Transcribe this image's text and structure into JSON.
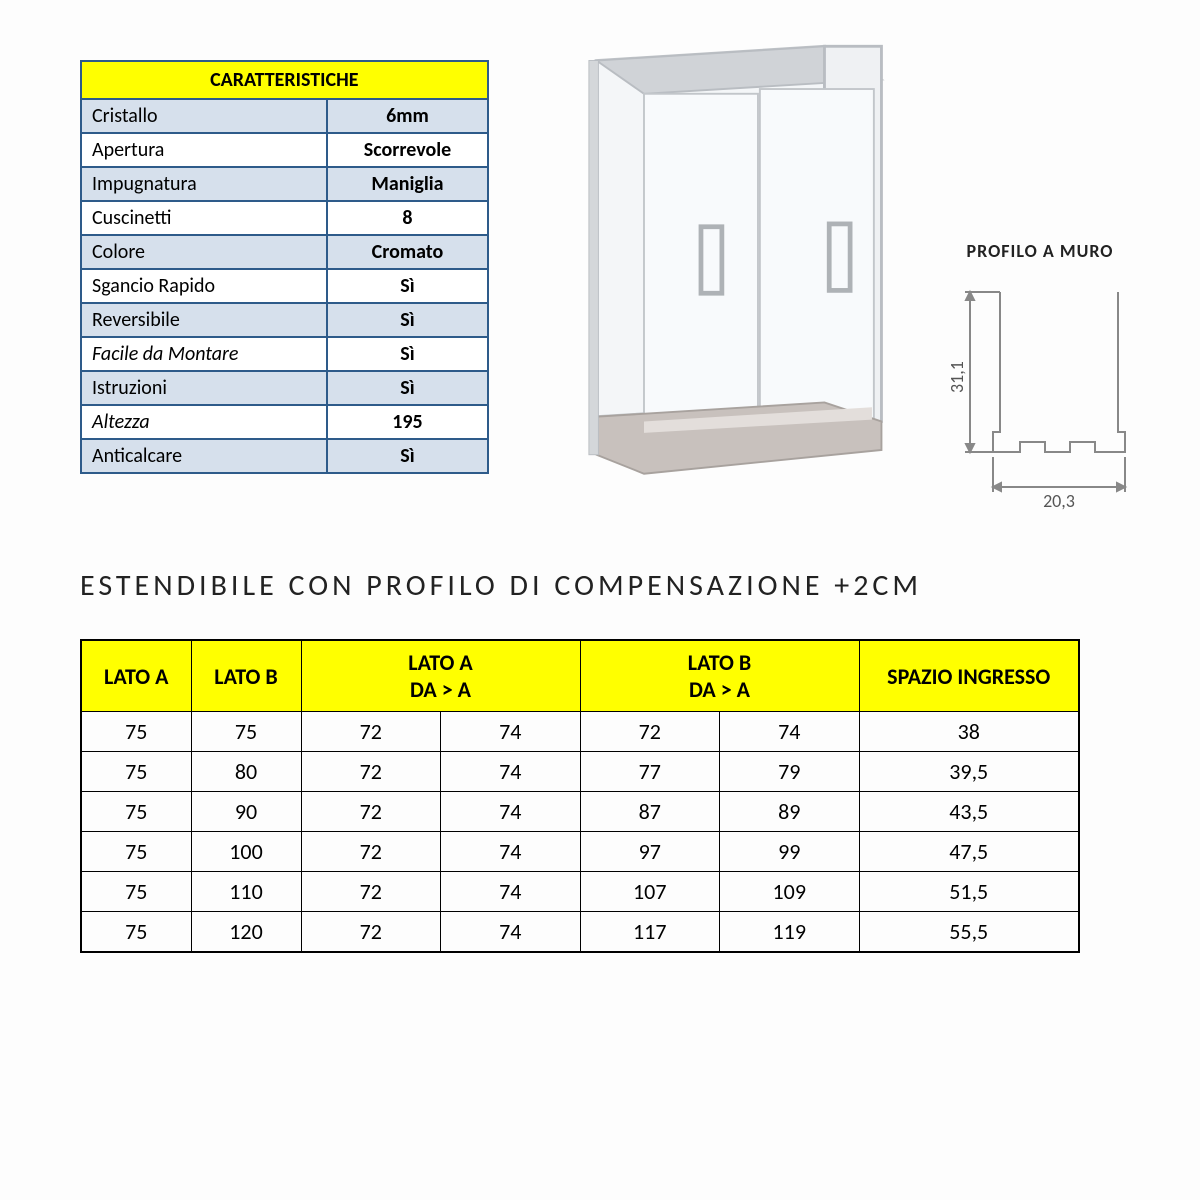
{
  "char_table": {
    "header": "CARATTERISTICHE",
    "header_bg": "#ffff00",
    "border_color": "#2e5b8a",
    "alt_row_bg": "#d6e0ec",
    "rows": [
      {
        "label": "Cristallo",
        "value": "6mm",
        "italic": false
      },
      {
        "label": "Apertura",
        "value": "Scorrevole",
        "italic": false
      },
      {
        "label": "Impugnatura",
        "value": "Maniglia",
        "italic": false
      },
      {
        "label": "Cuscinetti",
        "value": "8",
        "italic": false
      },
      {
        "label": "Colore",
        "value": "Cromato",
        "italic": false
      },
      {
        "label": "Sgancio Rapido",
        "value": "Sì",
        "italic": false
      },
      {
        "label": "Reversibile",
        "value": "Sì",
        "italic": false
      },
      {
        "label": "Facile da Montare",
        "value": "Sì",
        "italic": true
      },
      {
        "label": "Istruzioni",
        "value": "Sì",
        "italic": false
      },
      {
        "label": "Altezza",
        "value": "195",
        "italic": true
      },
      {
        "label": "Anticalcare",
        "value": "Sì",
        "italic": false
      }
    ]
  },
  "heading": "ESTENDIBILE CON PROFILO DI COMPENSAZIONE +2CM",
  "dims_table": {
    "header_bg": "#ffff00",
    "headers": {
      "lato_a": "LATO A",
      "lato_b": "LATO B",
      "lato_a_range": "LATO A",
      "lato_a_range_sub": "DA > A",
      "lato_b_range": "LATO B",
      "lato_b_range_sub": "DA > A",
      "spazio": "SPAZIO INGRESSO"
    },
    "rows": [
      {
        "a": "75",
        "b": "75",
        "a_from": "72",
        "a_to": "74",
        "b_from": "72",
        "b_to": "74",
        "sp": "38"
      },
      {
        "a": "75",
        "b": "80",
        "a_from": "72",
        "a_to": "74",
        "b_from": "77",
        "b_to": "79",
        "sp": "39,5"
      },
      {
        "a": "75",
        "b": "90",
        "a_from": "72",
        "a_to": "74",
        "b_from": "87",
        "b_to": "89",
        "sp": "43,5"
      },
      {
        "a": "75",
        "b": "100",
        "a_from": "72",
        "a_to": "74",
        "b_from": "97",
        "b_to": "99",
        "sp": "47,5"
      },
      {
        "a": "75",
        "b": "110",
        "a_from": "72",
        "a_to": "74",
        "b_from": "107",
        "b_to": "109",
        "sp": "51,5"
      },
      {
        "a": "75",
        "b": "120",
        "a_from": "72",
        "a_to": "74",
        "b_from": "117",
        "b_to": "119",
        "sp": "55,5"
      }
    ]
  },
  "profile": {
    "label": "PROFILO A MURO",
    "height_mm": "31,1",
    "width_mm": "20,3"
  },
  "product_image": {
    "frame_color": "#b9bdc2",
    "tray_color": "#c8c1bd",
    "glass_color": "#f4f6f8"
  }
}
